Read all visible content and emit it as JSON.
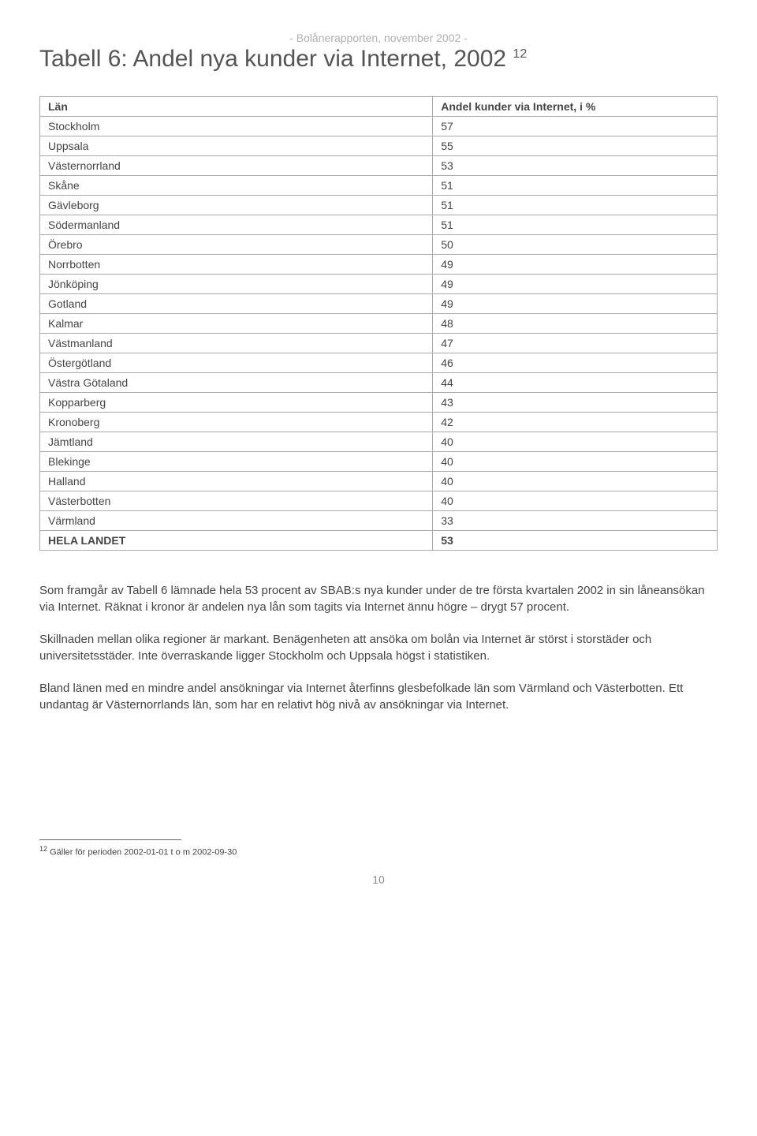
{
  "header": {
    "subtitle": "- Bolånerapporten, november 2002 -",
    "title": "Tabell 6: Andel nya kunder via Internet, 2002",
    "title_sup": "12"
  },
  "table": {
    "col1_header": "Län",
    "col2_header": "Andel kunder via Internet, i %",
    "rows": [
      {
        "label": "Stockholm",
        "value": "57"
      },
      {
        "label": "Uppsala",
        "value": "55"
      },
      {
        "label": "Västernorrland",
        "value": "53"
      },
      {
        "label": "Skåne",
        "value": "51"
      },
      {
        "label": "Gävleborg",
        "value": "51"
      },
      {
        "label": "Södermanland",
        "value": "51"
      },
      {
        "label": "Örebro",
        "value": "50"
      },
      {
        "label": "Norrbotten",
        "value": "49"
      },
      {
        "label": "Jönköping",
        "value": "49"
      },
      {
        "label": "Gotland",
        "value": "49"
      },
      {
        "label": "Kalmar",
        "value": "48"
      },
      {
        "label": "Västmanland",
        "value": "47"
      },
      {
        "label": "Östergötland",
        "value": "46"
      },
      {
        "label": "Västra Götaland",
        "value": "44"
      },
      {
        "label": "Kopparberg",
        "value": "43"
      },
      {
        "label": "Kronoberg",
        "value": "42"
      },
      {
        "label": "Jämtland",
        "value": "40"
      },
      {
        "label": "Blekinge",
        "value": "40"
      },
      {
        "label": "Halland",
        "value": "40"
      },
      {
        "label": "Västerbotten",
        "value": "40"
      },
      {
        "label": "Värmland",
        "value": "33"
      }
    ],
    "total_label": "HELA LANDET",
    "total_value": "53"
  },
  "paragraphs": {
    "p1": "Som framgår av Tabell 6 lämnade hela 53 procent av SBAB:s nya kunder under de tre första kvartalen 2002 in sin låneansökan via Internet. Räknat i kronor är andelen nya lån som tagits via Internet ännu högre – drygt 57 procent.",
    "p2": "Skillnaden mellan olika regioner är markant. Benägenheten att ansöka om bolån via Internet är störst i storstäder och universitetsstäder. Inte överraskande ligger Stockholm och Uppsala högst i statistiken.",
    "p3": "Bland länen med en mindre andel ansökningar via Internet återfinns glesbefolkade län som Värmland och Västerbotten. Ett undantag är Västernorrlands län, som har en relativt hög nivå av ansökningar via Internet."
  },
  "footnote": {
    "sup": "12",
    "text": " Gäller för perioden 2002-01-01 t o m 2002-09-30"
  },
  "page_number": "10"
}
